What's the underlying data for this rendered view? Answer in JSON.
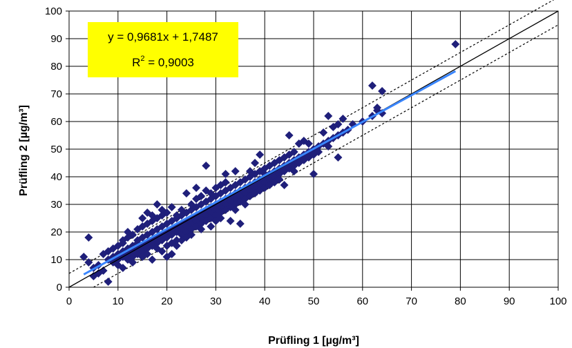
{
  "chart_data": {
    "type": "scatter",
    "title": "",
    "xlabel": "Prüfling 1 [µg/m³]",
    "ylabel": "Prüfling 2 [µg/m³]",
    "xlim": [
      0,
      100
    ],
    "ylim": [
      0,
      100
    ],
    "xticks": [
      "0",
      "10",
      "20",
      "30",
      "40",
      "50",
      "60",
      "70",
      "80",
      "90",
      "100"
    ],
    "yticks": [
      "0",
      "10",
      "20",
      "30",
      "40",
      "50",
      "60",
      "70",
      "80",
      "90",
      "100"
    ],
    "grid": true,
    "marker_color": "#1f1f7a",
    "regression_color": "#3a86ff",
    "equation": {
      "line1": "y = 0,9681x + 1,7487",
      "r2_prefix": "R",
      "r2_sup": "2",
      "r2_value": " = 0,9003",
      "box_color": "#ffff00"
    },
    "regression": {
      "slope": 0.9681,
      "intercept": 1.7487,
      "x_range": [
        3,
        79
      ]
    },
    "identity_line": {
      "x_range": [
        0,
        100
      ]
    },
    "bound_lines": [
      {
        "style": "dotted",
        "points": [
          [
            0,
            5
          ],
          [
            100,
            105
          ]
        ]
      },
      {
        "style": "dotted",
        "points": [
          [
            5,
            0
          ],
          [
            100,
            95
          ]
        ]
      }
    ],
    "points": [
      [
        3,
        11
      ],
      [
        4,
        18
      ],
      [
        4,
        9
      ],
      [
        5,
        7
      ],
      [
        5,
        4
      ],
      [
        6,
        5
      ],
      [
        6,
        8
      ],
      [
        7,
        12
      ],
      [
        7,
        6
      ],
      [
        8,
        10
      ],
      [
        8,
        2
      ],
      [
        8,
        13
      ],
      [
        9,
        9
      ],
      [
        9,
        11
      ],
      [
        9,
        14
      ],
      [
        10,
        8
      ],
      [
        10,
        12
      ],
      [
        10,
        15
      ],
      [
        10,
        10
      ],
      [
        11,
        7
      ],
      [
        11,
        13
      ],
      [
        11,
        17
      ],
      [
        11,
        16
      ],
      [
        11,
        11
      ],
      [
        12,
        12
      ],
      [
        12,
        14
      ],
      [
        12,
        18
      ],
      [
        12,
        10
      ],
      [
        12,
        20
      ],
      [
        13,
        13
      ],
      [
        13,
        11
      ],
      [
        13,
        15
      ],
      [
        13,
        19
      ],
      [
        13,
        9
      ],
      [
        14,
        14
      ],
      [
        14,
        17
      ],
      [
        14,
        12
      ],
      [
        14,
        21
      ],
      [
        14,
        16
      ],
      [
        15,
        15
      ],
      [
        15,
        13
      ],
      [
        15,
        18
      ],
      [
        15,
        22
      ],
      [
        15,
        11
      ],
      [
        15,
        25
      ],
      [
        16,
        16
      ],
      [
        16,
        14
      ],
      [
        16,
        19
      ],
      [
        16,
        23
      ],
      [
        16,
        12
      ],
      [
        16,
        27
      ],
      [
        17,
        17
      ],
      [
        17,
        15
      ],
      [
        17,
        20
      ],
      [
        17,
        24
      ],
      [
        17,
        10
      ],
      [
        17,
        26
      ],
      [
        18,
        18
      ],
      [
        18,
        16
      ],
      [
        18,
        21
      ],
      [
        18,
        14
      ],
      [
        18,
        25
      ],
      [
        18,
        30
      ],
      [
        19,
        19
      ],
      [
        19,
        17
      ],
      [
        19,
        22
      ],
      [
        19,
        13
      ],
      [
        19,
        26
      ],
      [
        19,
        28
      ],
      [
        20,
        20
      ],
      [
        20,
        18
      ],
      [
        20,
        23
      ],
      [
        20,
        15
      ],
      [
        20,
        27
      ],
      [
        20,
        11
      ],
      [
        21,
        21
      ],
      [
        21,
        19
      ],
      [
        21,
        24
      ],
      [
        21,
        16
      ],
      [
        21,
        12
      ],
      [
        21,
        29
      ],
      [
        22,
        22
      ],
      [
        22,
        20
      ],
      [
        22,
        25
      ],
      [
        22,
        17
      ],
      [
        22,
        26
      ],
      [
        22,
        15
      ],
      [
        23,
        23
      ],
      [
        23,
        21
      ],
      [
        23,
        26
      ],
      [
        23,
        19
      ],
      [
        23,
        28
      ],
      [
        23,
        17
      ],
      [
        24,
        24
      ],
      [
        24,
        22
      ],
      [
        24,
        27
      ],
      [
        24,
        20
      ],
      [
        24,
        34
      ],
      [
        24,
        18
      ],
      [
        25,
        25
      ],
      [
        25,
        23
      ],
      [
        25,
        28
      ],
      [
        25,
        21
      ],
      [
        25,
        30
      ],
      [
        25,
        19
      ],
      [
        26,
        26
      ],
      [
        26,
        24
      ],
      [
        26,
        29
      ],
      [
        26,
        22
      ],
      [
        26,
        32
      ],
      [
        26,
        36
      ],
      [
        27,
        27
      ],
      [
        27,
        25
      ],
      [
        27,
        30
      ],
      [
        27,
        23
      ],
      [
        27,
        33
      ],
      [
        27,
        21
      ],
      [
        28,
        28
      ],
      [
        28,
        26
      ],
      [
        28,
        31
      ],
      [
        28,
        24
      ],
      [
        28,
        35
      ],
      [
        28,
        44
      ],
      [
        29,
        29
      ],
      [
        29,
        27
      ],
      [
        29,
        32
      ],
      [
        29,
        25
      ],
      [
        29,
        34
      ],
      [
        29,
        22
      ],
      [
        30,
        30
      ],
      [
        30,
        28
      ],
      [
        30,
        33
      ],
      [
        30,
        26
      ],
      [
        30,
        36
      ],
      [
        30,
        24
      ],
      [
        31,
        31
      ],
      [
        31,
        29
      ],
      [
        31,
        34
      ],
      [
        31,
        27
      ],
      [
        31,
        37
      ],
      [
        31,
        25
      ],
      [
        32,
        32
      ],
      [
        32,
        30
      ],
      [
        32,
        35
      ],
      [
        32,
        28
      ],
      [
        32,
        38
      ],
      [
        32,
        41
      ],
      [
        33,
        33
      ],
      [
        33,
        31
      ],
      [
        33,
        36
      ],
      [
        33,
        29
      ],
      [
        33,
        24
      ],
      [
        34,
        34
      ],
      [
        34,
        32
      ],
      [
        34,
        37
      ],
      [
        34,
        30
      ],
      [
        34,
        42
      ],
      [
        34,
        28
      ],
      [
        35,
        35
      ],
      [
        35,
        33
      ],
      [
        35,
        38
      ],
      [
        35,
        31
      ],
      [
        35,
        23
      ],
      [
        36,
        36
      ],
      [
        36,
        34
      ],
      [
        36,
        39
      ],
      [
        36,
        32
      ],
      [
        36,
        30
      ],
      [
        37,
        37
      ],
      [
        37,
        35
      ],
      [
        37,
        40
      ],
      [
        37,
        33
      ],
      [
        37,
        42
      ],
      [
        38,
        38
      ],
      [
        38,
        36
      ],
      [
        38,
        41
      ],
      [
        38,
        34
      ],
      [
        38,
        45
      ],
      [
        39,
        39
      ],
      [
        39,
        37
      ],
      [
        39,
        42
      ],
      [
        39,
        35
      ],
      [
        39,
        48
      ],
      [
        40,
        40
      ],
      [
        40,
        38
      ],
      [
        40,
        43
      ],
      [
        40,
        36
      ],
      [
        40,
        41
      ],
      [
        41,
        41
      ],
      [
        41,
        39
      ],
      [
        41,
        44
      ],
      [
        41,
        37
      ],
      [
        42,
        42
      ],
      [
        42,
        40
      ],
      [
        42,
        45
      ],
      [
        42,
        38
      ],
      [
        43,
        43
      ],
      [
        43,
        41
      ],
      [
        43,
        46
      ],
      [
        43,
        39
      ],
      [
        44,
        44
      ],
      [
        44,
        42
      ],
      [
        44,
        47
      ],
      [
        44,
        37
      ],
      [
        45,
        45
      ],
      [
        45,
        43
      ],
      [
        45,
        48
      ],
      [
        45,
        55
      ],
      [
        46,
        46
      ],
      [
        46,
        44
      ],
      [
        46,
        49
      ],
      [
        46,
        42
      ],
      [
        47,
        47
      ],
      [
        47,
        45
      ],
      [
        47,
        52
      ],
      [
        48,
        48
      ],
      [
        48,
        46
      ],
      [
        48,
        53
      ],
      [
        49,
        49
      ],
      [
        49,
        47
      ],
      [
        49,
        52
      ],
      [
        50,
        50
      ],
      [
        50,
        48
      ],
      [
        50,
        41
      ],
      [
        51,
        51
      ],
      [
        51,
        49
      ],
      [
        52,
        52
      ],
      [
        52,
        56
      ],
      [
        53,
        53
      ],
      [
        53,
        51
      ],
      [
        53,
        62
      ],
      [
        54,
        54
      ],
      [
        54,
        58
      ],
      [
        55,
        55
      ],
      [
        55,
        59
      ],
      [
        55,
        47
      ],
      [
        56,
        56
      ],
      [
        56,
        61
      ],
      [
        57,
        57
      ],
      [
        58,
        59
      ],
      [
        60,
        60
      ],
      [
        62,
        62
      ],
      [
        62,
        73
      ],
      [
        63,
        64
      ],
      [
        63,
        65
      ],
      [
        64,
        71
      ],
      [
        64,
        63
      ],
      [
        79,
        88
      ]
    ]
  }
}
